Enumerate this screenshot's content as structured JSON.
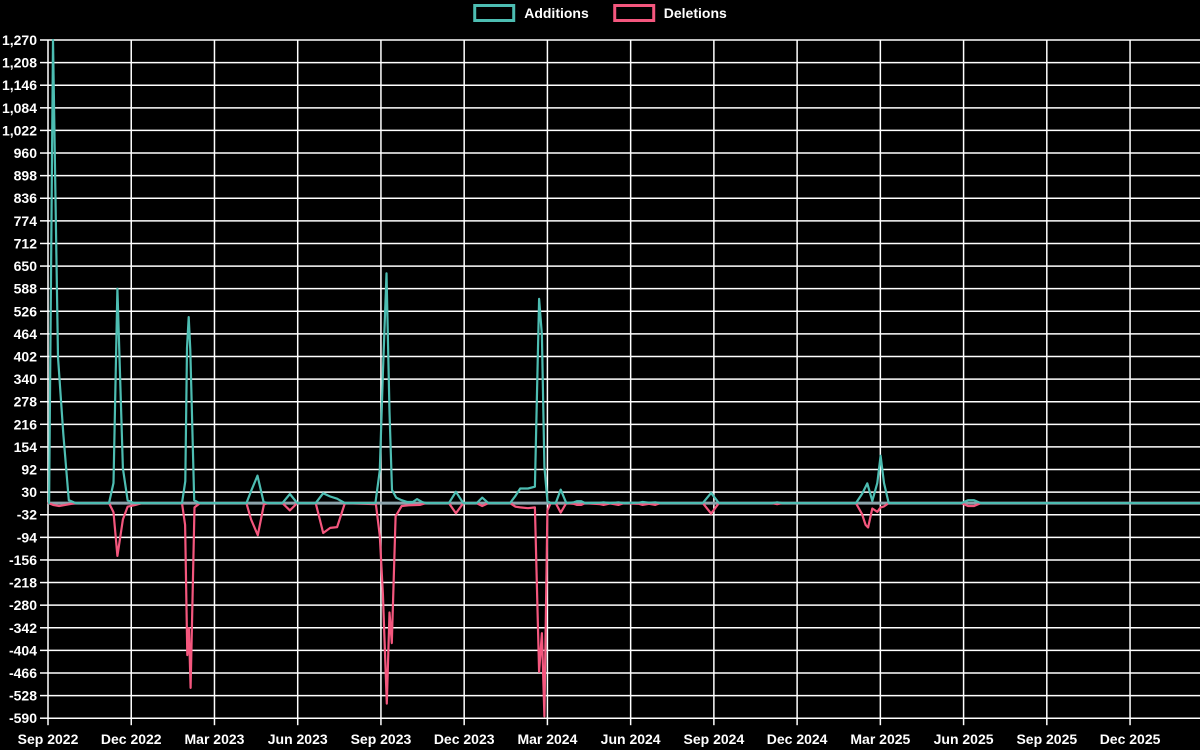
{
  "chart_data": {
    "type": "line",
    "title": "",
    "background_color": "#000000",
    "grid_color": "#ffffff",
    "zero_line_color": "#8BA3AB",
    "text_color": "#ffffff",
    "legend_position": "top-center",
    "x_axis": {
      "unit": "months-from-first-tick",
      "tick_labels": [
        "Sep 2022",
        "Dec 2022",
        "Mar 2023",
        "Jun 2023",
        "Sep 2023",
        "Dec 2023",
        "Mar 2024",
        "Jun 2024",
        "Sep 2024",
        "Dec 2024",
        "Mar 2025",
        "Jun 2025",
        "Sep 2025",
        "Dec 2025"
      ],
      "tick_positions_months": [
        0,
        3,
        6,
        9,
        12,
        15,
        18,
        21,
        24,
        27,
        30,
        33,
        36,
        39
      ],
      "range_months": [
        0,
        41.5
      ],
      "grid": true
    },
    "y_axis": {
      "min": -590,
      "max": 1270,
      "tick_step": 62,
      "tick_labels": [
        "1,270",
        "1,208",
        "1,146",
        "1,084",
        "1,022",
        "960",
        "898",
        "836",
        "774",
        "712",
        "650",
        "588",
        "526",
        "464",
        "402",
        "340",
        "278",
        "216",
        "154",
        "92",
        "30",
        "-32",
        "-94",
        "-156",
        "-218",
        "-280",
        "-342",
        "-404",
        "-466",
        "-528",
        "-590"
      ],
      "grid": true
    },
    "series": [
      {
        "name": "Additions",
        "color": "#4DBDB2",
        "points": [
          [
            0.04,
            0
          ],
          [
            0.18,
            1270
          ],
          [
            0.36,
            400
          ],
          [
            0.55,
            190
          ],
          [
            0.75,
            8
          ],
          [
            1.0,
            0
          ],
          [
            2.2,
            0
          ],
          [
            2.36,
            55
          ],
          [
            2.5,
            588
          ],
          [
            2.7,
            95
          ],
          [
            2.87,
            8
          ],
          [
            3.1,
            0
          ],
          [
            4.83,
            0
          ],
          [
            4.95,
            60
          ],
          [
            5.01,
            425
          ],
          [
            5.07,
            510
          ],
          [
            5.13,
            420
          ],
          [
            5.27,
            8
          ],
          [
            5.45,
            0
          ],
          [
            7.15,
            0
          ],
          [
            7.33,
            35
          ],
          [
            7.55,
            75
          ],
          [
            7.77,
            3
          ],
          [
            7.92,
            0
          ],
          [
            8.45,
            0
          ],
          [
            8.72,
            25
          ],
          [
            8.98,
            0
          ],
          [
            9.65,
            0
          ],
          [
            9.92,
            27
          ],
          [
            10.17,
            18
          ],
          [
            10.42,
            12
          ],
          [
            10.7,
            0
          ],
          [
            11.8,
            0
          ],
          [
            11.96,
            90
          ],
          [
            12.07,
            357
          ],
          [
            12.2,
            630
          ],
          [
            12.31,
            250
          ],
          [
            12.4,
            36
          ],
          [
            12.55,
            15
          ],
          [
            12.75,
            8
          ],
          [
            12.95,
            3
          ],
          [
            13.15,
            3
          ],
          [
            13.3,
            11
          ],
          [
            13.48,
            3
          ],
          [
            13.62,
            0
          ],
          [
            14.45,
            0
          ],
          [
            14.7,
            31
          ],
          [
            14.97,
            0
          ],
          [
            15.45,
            0
          ],
          [
            15.65,
            15
          ],
          [
            15.87,
            0
          ],
          [
            16.65,
            0
          ],
          [
            16.85,
            20
          ],
          [
            17.02,
            40
          ],
          [
            17.3,
            40
          ],
          [
            17.55,
            45
          ],
          [
            17.7,
            560
          ],
          [
            17.8,
            461
          ],
          [
            17.89,
            100
          ],
          [
            18.0,
            5
          ],
          [
            18.12,
            0
          ],
          [
            18.3,
            0
          ],
          [
            18.48,
            37
          ],
          [
            18.68,
            0
          ],
          [
            18.95,
            2
          ],
          [
            19.07,
            5
          ],
          [
            19.22,
            5
          ],
          [
            19.36,
            0
          ],
          [
            19.9,
            1
          ],
          [
            20.02,
            2
          ],
          [
            20.26,
            0
          ],
          [
            20.56,
            2
          ],
          [
            20.76,
            0
          ],
          [
            21.3,
            1
          ],
          [
            21.43,
            3
          ],
          [
            21.66,
            1
          ],
          [
            21.89,
            2
          ],
          [
            22.06,
            0
          ],
          [
            23.6,
            0
          ],
          [
            23.9,
            28
          ],
          [
            24.18,
            0
          ],
          [
            26.1,
            0
          ],
          [
            26.28,
            2
          ],
          [
            26.46,
            0
          ],
          [
            29.12,
            0
          ],
          [
            29.34,
            25
          ],
          [
            29.53,
            54
          ],
          [
            29.71,
            6
          ],
          [
            29.89,
            55
          ],
          [
            30.01,
            130
          ],
          [
            30.13,
            55
          ],
          [
            30.3,
            0
          ],
          [
            32.92,
            0
          ],
          [
            33.16,
            8
          ],
          [
            33.38,
            8
          ],
          [
            33.62,
            0
          ],
          [
            41.5,
            0
          ]
        ]
      },
      {
        "name": "Deletions",
        "color": "#F4577E",
        "points": [
          [
            0.02,
            0
          ],
          [
            0.18,
            -5
          ],
          [
            0.4,
            -8
          ],
          [
            0.62,
            -5
          ],
          [
            0.85,
            -2
          ],
          [
            1.05,
            0
          ],
          [
            2.2,
            0
          ],
          [
            2.36,
            -25
          ],
          [
            2.5,
            -145
          ],
          [
            2.7,
            -45
          ],
          [
            2.87,
            -10
          ],
          [
            3.15,
            -5
          ],
          [
            3.4,
            0
          ],
          [
            4.83,
            0
          ],
          [
            4.94,
            -60
          ],
          [
            5.02,
            -417
          ],
          [
            5.08,
            -343
          ],
          [
            5.14,
            -507
          ],
          [
            5.28,
            -12
          ],
          [
            5.48,
            0
          ],
          [
            7.15,
            0
          ],
          [
            7.32,
            -45
          ],
          [
            7.56,
            -88
          ],
          [
            7.78,
            -4
          ],
          [
            7.92,
            0
          ],
          [
            8.45,
            0
          ],
          [
            8.72,
            -20
          ],
          [
            8.98,
            0
          ],
          [
            9.65,
            0
          ],
          [
            9.92,
            -82
          ],
          [
            10.17,
            -68
          ],
          [
            10.42,
            -66
          ],
          [
            10.7,
            0
          ],
          [
            11.82,
            -3
          ],
          [
            11.96,
            -90
          ],
          [
            12.07,
            -250
          ],
          [
            12.21,
            -550
          ],
          [
            12.31,
            -300
          ],
          [
            12.39,
            -384
          ],
          [
            12.53,
            -36
          ],
          [
            12.75,
            -8
          ],
          [
            13.0,
            -6
          ],
          [
            13.4,
            -5
          ],
          [
            13.62,
            0
          ],
          [
            14.45,
            0
          ],
          [
            14.7,
            -28
          ],
          [
            14.97,
            0
          ],
          [
            15.45,
            0
          ],
          [
            15.65,
            -8
          ],
          [
            15.87,
            0
          ],
          [
            16.65,
            0
          ],
          [
            16.85,
            -10
          ],
          [
            17.02,
            -12
          ],
          [
            17.3,
            -14
          ],
          [
            17.55,
            -12
          ],
          [
            17.7,
            -463
          ],
          [
            17.8,
            -357
          ],
          [
            17.89,
            -585
          ],
          [
            18.0,
            -20
          ],
          [
            18.12,
            0
          ],
          [
            18.3,
            0
          ],
          [
            18.48,
            -26
          ],
          [
            18.68,
            0
          ],
          [
            18.95,
            -2
          ],
          [
            19.07,
            -5
          ],
          [
            19.22,
            -5
          ],
          [
            19.36,
            0
          ],
          [
            19.9,
            -3
          ],
          [
            20.02,
            -5
          ],
          [
            20.26,
            -1
          ],
          [
            20.56,
            -5
          ],
          [
            20.76,
            0
          ],
          [
            21.3,
            -2
          ],
          [
            21.43,
            -5
          ],
          [
            21.66,
            -2
          ],
          [
            21.89,
            -5
          ],
          [
            22.06,
            0
          ],
          [
            23.6,
            0
          ],
          [
            23.9,
            -29
          ],
          [
            24.18,
            0
          ],
          [
            26.1,
            0
          ],
          [
            26.28,
            -3
          ],
          [
            26.46,
            0
          ],
          [
            29.12,
            0
          ],
          [
            29.34,
            -30
          ],
          [
            29.47,
            -60
          ],
          [
            29.56,
            -67
          ],
          [
            29.71,
            -15
          ],
          [
            29.89,
            -24
          ],
          [
            30.01,
            -12
          ],
          [
            30.13,
            -9
          ],
          [
            30.3,
            0
          ],
          [
            32.92,
            0
          ],
          [
            33.16,
            -8
          ],
          [
            33.38,
            -8
          ],
          [
            33.62,
            0
          ],
          [
            41.5,
            0
          ]
        ]
      }
    ]
  }
}
